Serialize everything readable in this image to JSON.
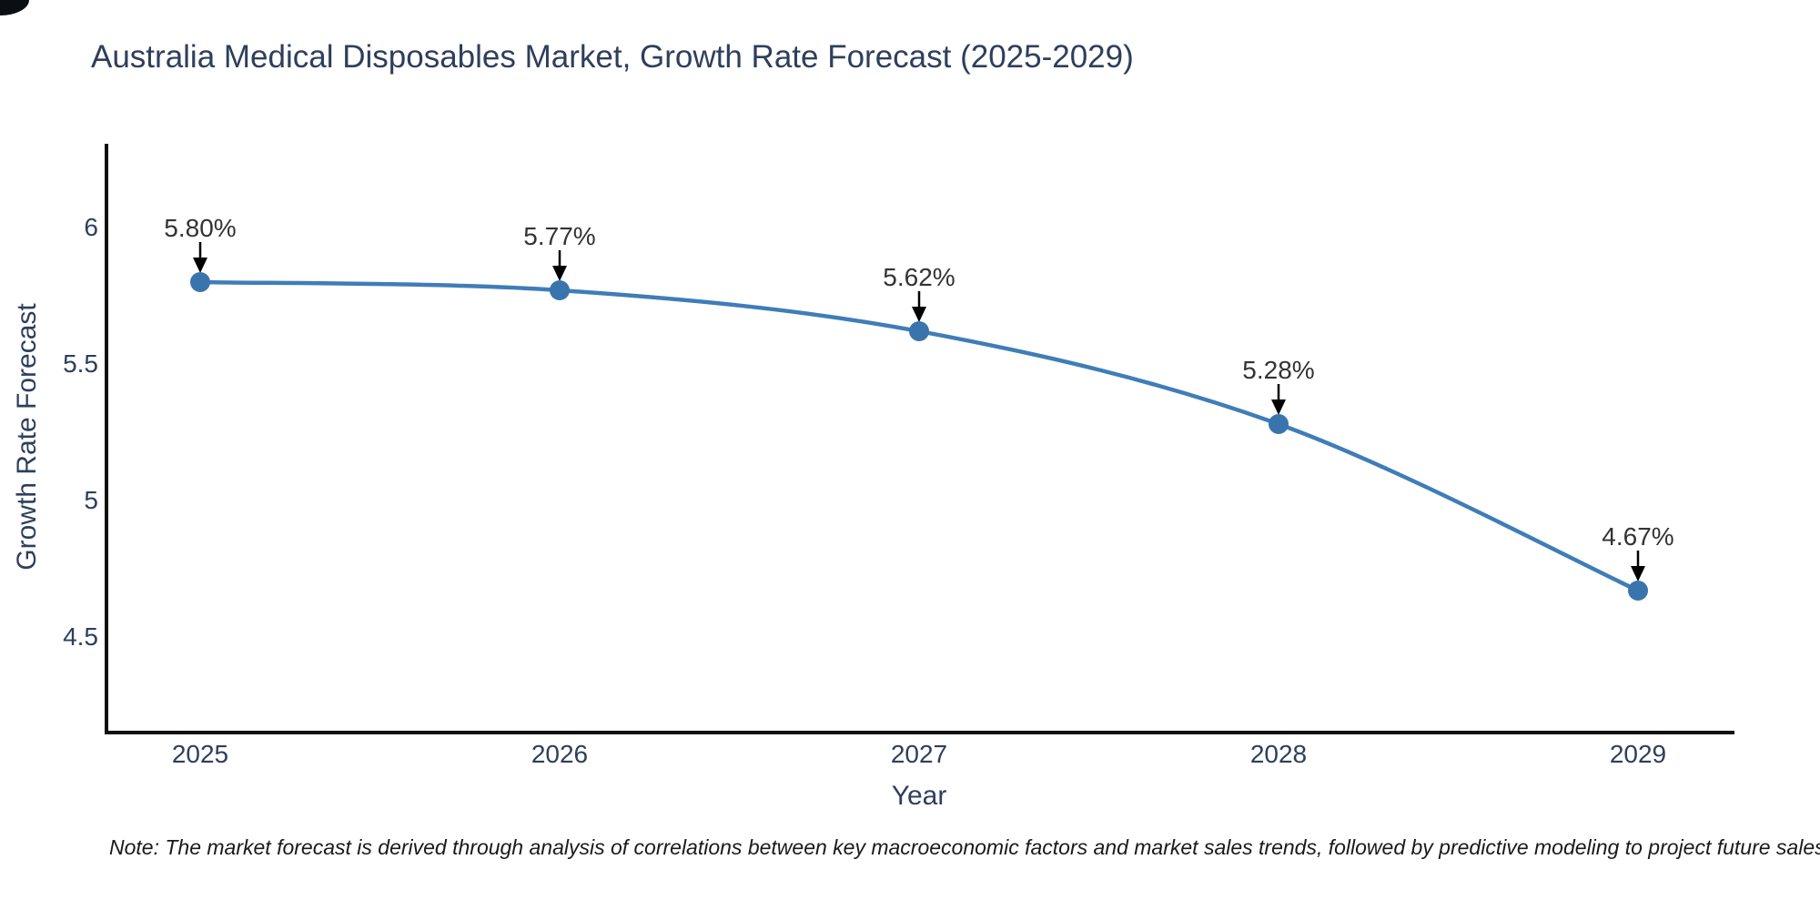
{
  "page": {
    "background": "#ffffff"
  },
  "chart_data": {
    "type": "line",
    "title": "Australia Medical Disposables Market, Growth Rate Forecast (2025-2029)",
    "xlabel": "Year",
    "ylabel": "Growth Rate Forecast",
    "x": [
      "2025",
      "2026",
      "2027",
      "2028",
      "2029"
    ],
    "y": [
      5.8,
      5.77,
      5.62,
      5.28,
      4.67
    ],
    "point_labels": [
      "5.80%",
      "5.77%",
      "5.62%",
      "5.28%",
      "4.67%"
    ],
    "y_ticks": [
      {
        "label": "6",
        "value": 6
      },
      {
        "label": "5.5",
        "value": 5.5
      },
      {
        "label": "5",
        "value": 5
      },
      {
        "label": "4.5",
        "value": 4.5
      }
    ],
    "ylim": [
      4.15,
      6.32
    ],
    "grid": false,
    "legend": "none",
    "line_color": "#3f7db8",
    "marker_color": "#3a74ad",
    "annotation_arrow_color": "#000000",
    "note": "Note: The market forecast is derived through analysis of correlations between key macroeconomic factors and market sales trends, followed by predictive modeling to project future sales"
  },
  "colors": {
    "axis_text": "#2e3f5c",
    "annotation_text": "#333333",
    "axis_line": "#111111",
    "note_text": "#1a1a1a"
  }
}
